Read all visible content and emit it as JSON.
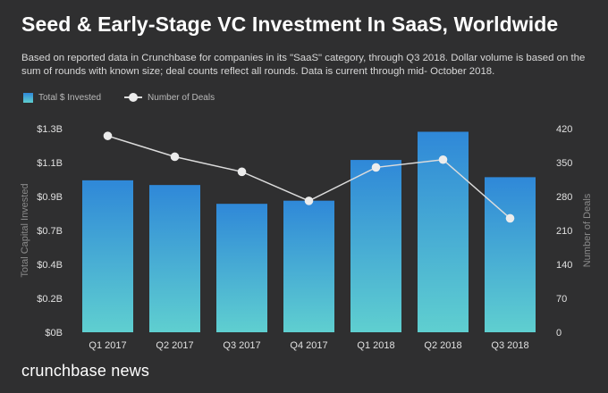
{
  "header": {
    "title": "Seed & Early-Stage VC Investment In SaaS, Worldwide",
    "subtitle": "Based on reported data in Crunchbase for companies in its \"SaaS\" category, through Q3 2018. Dollar volume is based on the sum of rounds with known size; deal counts reflect all rounds. Data is current through mid- October 2018."
  },
  "legend": {
    "bars_label": "Total $ Invested",
    "line_label": "Number of Deals",
    "placement": "top-left"
  },
  "branding": {
    "logo_text": "crunchbase news"
  },
  "colors": {
    "background": "#2f2f30",
    "bar_top": "#2f88d8",
    "bar_bottom": "#5fcfd0",
    "line": "#dcdcdc",
    "marker": "#ececec"
  },
  "chart_data": {
    "type": "bar",
    "categories": [
      "Q1 2017",
      "Q2 2017",
      "Q3 2017",
      "Q4 2017",
      "Q1 2018",
      "Q2 2018",
      "Q3 2018"
    ],
    "series": [
      {
        "name": "Total $ Invested",
        "type": "bar",
        "axis": "left",
        "values": [
          0.97,
          0.94,
          0.82,
          0.84,
          1.1,
          1.28,
          0.99
        ]
      },
      {
        "name": "Number of Deals",
        "type": "line",
        "axis": "right",
        "values": [
          405,
          362,
          331,
          271,
          340,
          356,
          235
        ]
      }
    ],
    "ylabel": "Total Capital Invested",
    "y2label": "Number of Deals",
    "ylim": [
      0,
      1.3
    ],
    "y2lim": [
      0,
      420
    ],
    "yticks": [
      "$0B",
      "$0.2B",
      "$0.4B",
      "$0.7B",
      "$0.9B",
      "$1.1B",
      "$1.3B"
    ],
    "y2ticks": [
      "0",
      "70",
      "140",
      "210",
      "280",
      "350",
      "420"
    ],
    "grid": false
  }
}
